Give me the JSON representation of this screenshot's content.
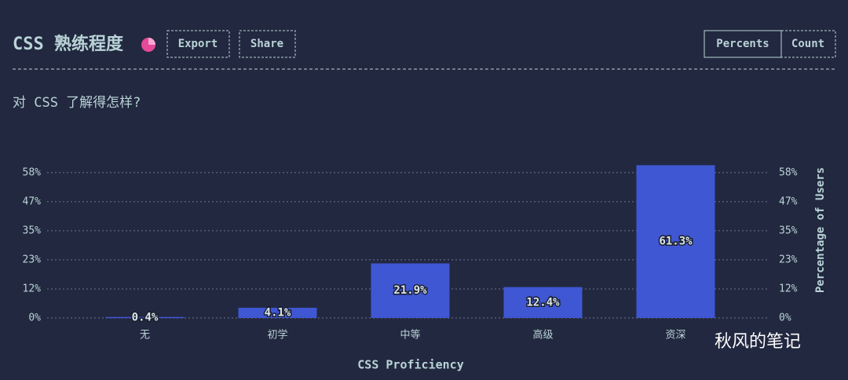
{
  "header": {
    "title": "CSS 熟练程度",
    "buttons": [
      "Export",
      "Share"
    ],
    "toggle": [
      "Percents",
      "Count"
    ]
  },
  "question": "对 CSS 了解得怎样?",
  "watermark": "秋风的笔记",
  "chart_data": {
    "type": "bar",
    "x_label": "CSS Proficiency",
    "y_label": "Percentage of Users",
    "categories": [
      "无",
      "初学",
      "中等",
      "高级",
      "资深"
    ],
    "values": [
      0.4,
      4.1,
      21.9,
      12.4,
      61.3
    ],
    "value_labels": [
      "0.4%",
      "4.1%",
      "21.9%",
      "12.4%",
      "61.3%"
    ],
    "color": "#3f57d3",
    "ylim": [
      0,
      63
    ],
    "yticks": [
      {
        "value": 0,
        "label": "0%"
      },
      {
        "value": 11.67,
        "label": "12%"
      },
      {
        "value": 23.33,
        "label": "23%"
      },
      {
        "value": 35,
        "label": "35%"
      },
      {
        "value": 46.67,
        "label": "47%"
      },
      {
        "value": 58.33,
        "label": "58%"
      }
    ],
    "grid": true
  }
}
